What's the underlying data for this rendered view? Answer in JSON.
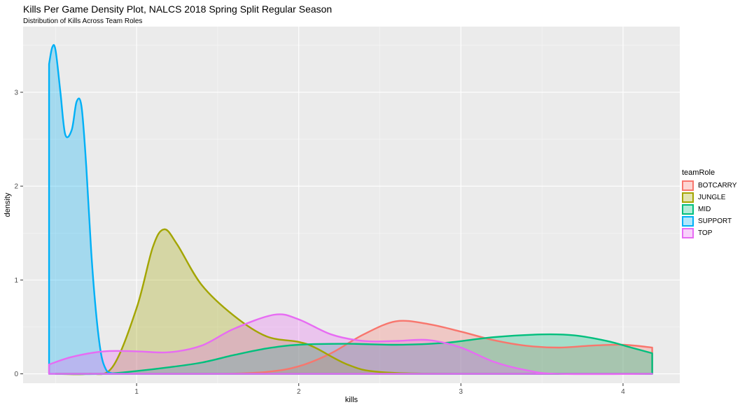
{
  "chart_data": {
    "type": "area",
    "title": "Kills Per Game Density Plot, NALCS 2018 Spring Split Regular Season",
    "subtitle": "Distribution of Kills Across Team Roles",
    "xlabel": "kills",
    "ylabel": "density",
    "xlim": [
      0.3,
      4.35
    ],
    "ylim": [
      -0.1,
      3.7
    ],
    "x_ticks": [
      1,
      2,
      3,
      4
    ],
    "y_ticks": [
      0,
      1,
      2,
      3
    ],
    "grid": true,
    "legend_title": "teamRole",
    "legend_position": "right",
    "series": [
      {
        "name": "BOTCARRY",
        "color": "#F8766D",
        "x": [
          0.5,
          1.0,
          1.5,
          1.8,
          2.0,
          2.2,
          2.4,
          2.6,
          2.8,
          3.0,
          3.2,
          3.4,
          3.6,
          3.8,
          4.0,
          4.18
        ],
        "y": [
          0.0,
          0.0,
          0.0,
          0.02,
          0.08,
          0.22,
          0.42,
          0.56,
          0.53,
          0.45,
          0.36,
          0.3,
          0.28,
          0.3,
          0.31,
          0.28
        ]
      },
      {
        "name": "JUNGLE",
        "color": "#A3A500",
        "x": [
          0.5,
          0.7,
          0.85,
          1.0,
          1.1,
          1.17,
          1.25,
          1.4,
          1.6,
          1.8,
          2.0,
          2.1,
          2.3,
          2.5,
          3.0,
          4.18
        ],
        "y": [
          0.0,
          0.0,
          0.07,
          0.7,
          1.35,
          1.54,
          1.38,
          0.95,
          0.62,
          0.4,
          0.34,
          0.28,
          0.1,
          0.02,
          0.0,
          0.0
        ]
      },
      {
        "name": "MID",
        "color": "#00BF7D",
        "x": [
          0.5,
          0.8,
          1.0,
          1.2,
          1.4,
          1.6,
          1.8,
          2.0,
          2.3,
          2.6,
          2.9,
          3.2,
          3.5,
          3.7,
          3.9,
          4.05,
          4.18
        ],
        "y": [
          0.0,
          0.0,
          0.03,
          0.07,
          0.12,
          0.2,
          0.27,
          0.31,
          0.32,
          0.31,
          0.33,
          0.39,
          0.42,
          0.41,
          0.35,
          0.28,
          0.22
        ]
      },
      {
        "name": "SUPPORT",
        "color": "#00B0F6",
        "x": [
          0.46,
          0.48,
          0.5,
          0.53,
          0.56,
          0.6,
          0.63,
          0.66,
          0.69,
          0.72,
          0.75,
          0.78,
          0.81,
          0.84,
          0.9,
          1.0,
          4.18
        ],
        "y": [
          3.3,
          3.48,
          3.45,
          3.0,
          2.55,
          2.6,
          2.9,
          2.85,
          2.2,
          1.3,
          0.65,
          0.22,
          0.05,
          0.01,
          0.0,
          0.0,
          0.0
        ]
      },
      {
        "name": "TOP",
        "color": "#E76BF3",
        "x": [
          0.46,
          0.6,
          0.8,
          1.0,
          1.2,
          1.4,
          1.6,
          1.85,
          2.0,
          2.2,
          2.4,
          2.6,
          2.8,
          3.0,
          3.2,
          3.4,
          3.6,
          4.18
        ],
        "y": [
          0.1,
          0.18,
          0.24,
          0.24,
          0.23,
          0.3,
          0.48,
          0.63,
          0.58,
          0.42,
          0.35,
          0.35,
          0.36,
          0.28,
          0.13,
          0.04,
          0.0,
          0.0
        ]
      }
    ]
  }
}
